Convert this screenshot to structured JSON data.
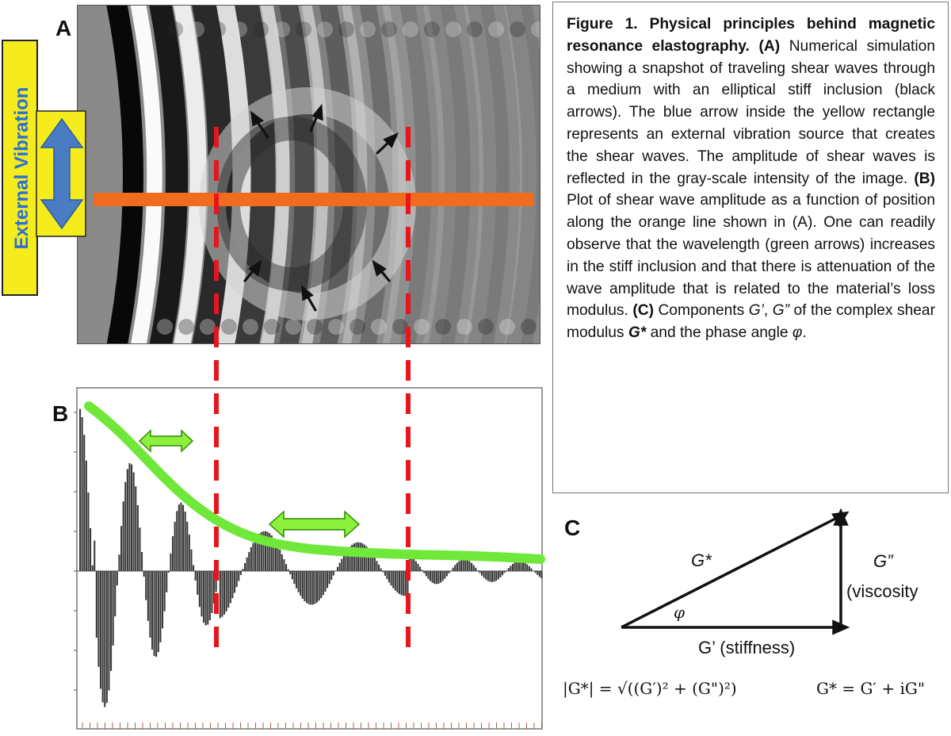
{
  "panels": {
    "a": "A",
    "b": "B",
    "c": "C"
  },
  "external_vibration_label": "External Vibration",
  "caption": {
    "title": "Figure 1. Physical principles behind magnetic resonance elastography.",
    "a_label": "(A)",
    "a_text": "Numerical simulation showing a snapshot of traveling shear waves through a medium with an elliptical stiff inclusion (black arrows). The blue arrow inside the yellow rectangle represents an external vibration source that creates the shear waves. The amplitude of shear waves is reflected in the gray-scale intensity of the image.",
    "b_label": "(B)",
    "b_text": "Plot of shear wave amplitude as a function of position along the orange line shown in (A). One can readily observe that the wavelength (green arrows) increases in the stiff inclusion and that there is attenuation of the wave amplitude that is related to the material’s loss modulus.",
    "c_label": "(C)",
    "c_text_1": "Components",
    "g_prime": "G’",
    "comma": ", ",
    "g_double": "G”",
    "c_text_2": "of the complex shear modulus",
    "g_star": "G*",
    "c_text_3": "and the phase angle",
    "phi": "φ",
    "period": "."
  },
  "panel_c": {
    "g_star": "G*",
    "g_double_prime": "G”",
    "viscosity": "(viscosity",
    "phi": "φ",
    "g_prime_stiffness": "G’ (stiffness)",
    "formula_magnitude": "|G*| = √((G′)² + (G\")²)",
    "formula_complex": "G* = G′ + iG\""
  },
  "colors": {
    "orange_line": "#f26c1e",
    "red_dash": "#e8161b",
    "green_envelope": "#6fe83a",
    "yellow_box": "#f5ec1e",
    "blue_arrow": "#4a7cc4"
  }
}
